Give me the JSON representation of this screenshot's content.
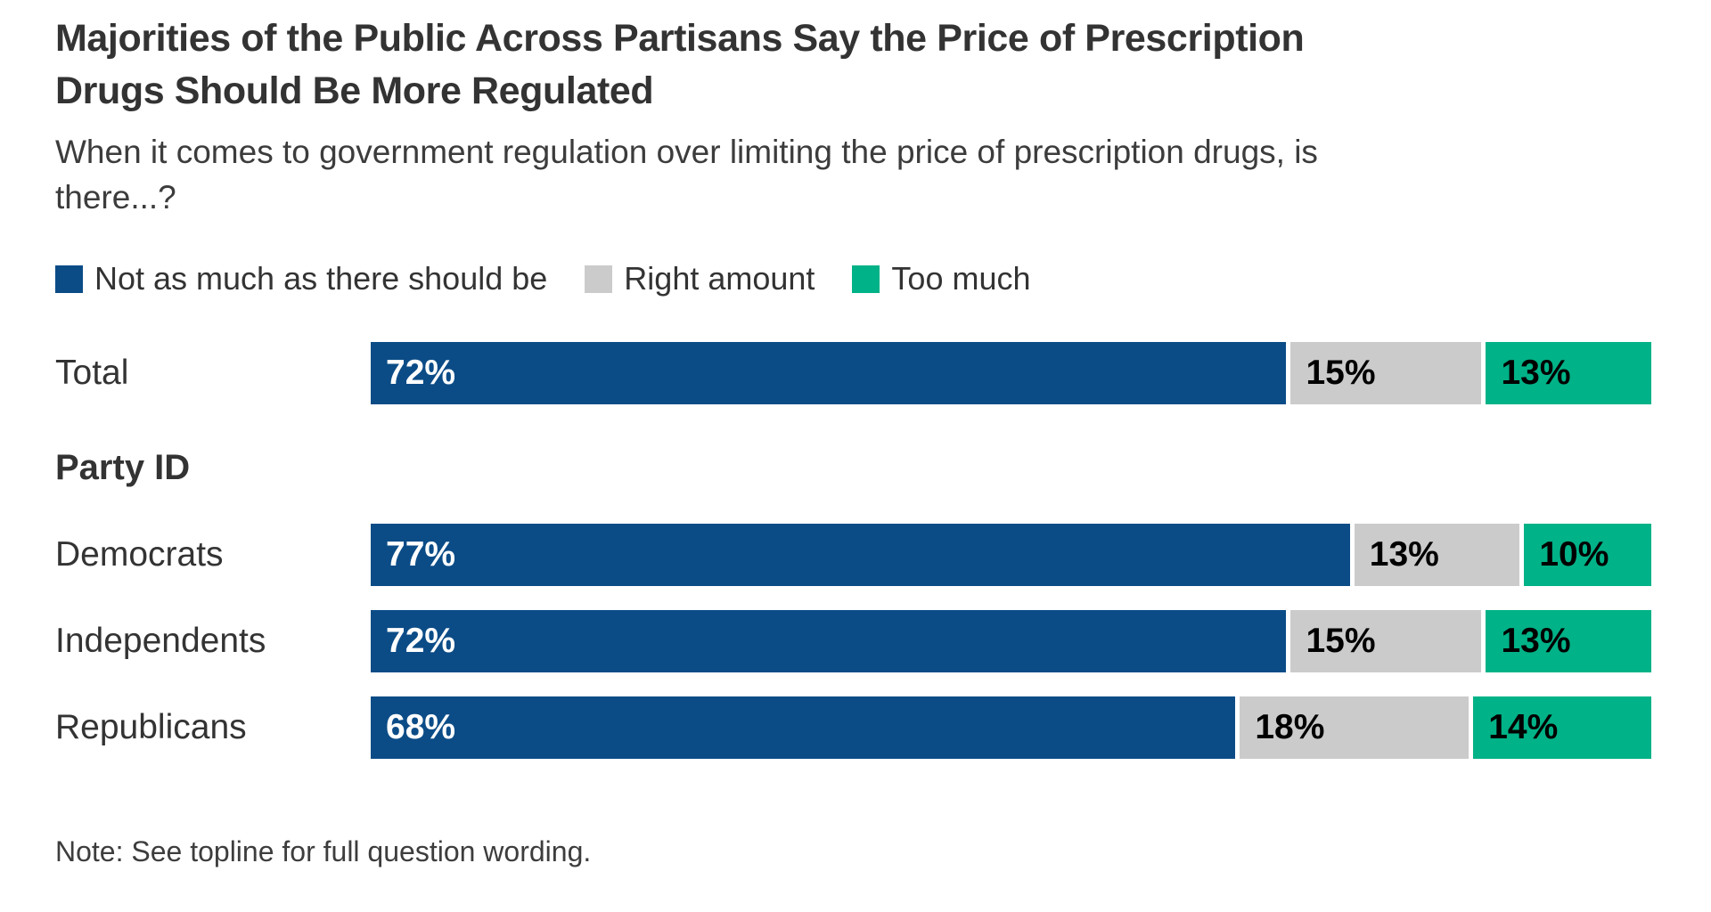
{
  "title": "Majorities of the Public Across Partisans Say the Price of Prescription Drugs Should Be More Regulated",
  "subtitle": "When it comes to government regulation over limiting the price of prescription drugs, is there...?",
  "section_header": "Party ID",
  "note": "Note: See topline for full question wording.",
  "colors": {
    "not_as_much": "#0b4c87",
    "right_amount": "#cbcbcb",
    "too_much": "#00b287",
    "label_on_dark": "#ffffff",
    "label_on_light": "#000000",
    "text": "#333333"
  },
  "chart_data": {
    "type": "bar",
    "orientation": "horizontal-stacked",
    "title": "Majorities of the Public Across Partisans Say the Price of Prescription Drugs Should Be More Regulated",
    "question": "When it comes to government regulation over limiting the price of prescription drugs, is there...?",
    "categories": [
      "Total",
      "Democrats",
      "Independents",
      "Republicans"
    ],
    "group_header_after_first": "Party ID",
    "value_format": "percent",
    "xlim": [
      0,
      100
    ],
    "grid": false,
    "legend_position": "top",
    "series": [
      {
        "name": "Not as much as there should be",
        "key": "not_as_much",
        "color": "#0b4c87",
        "values": [
          72,
          77,
          72,
          68
        ]
      },
      {
        "name": "Right amount",
        "key": "right_amount",
        "color": "#cbcbcb",
        "values": [
          15,
          13,
          15,
          18
        ]
      },
      {
        "name": "Too much",
        "key": "too_much",
        "color": "#00b287",
        "values": [
          13,
          10,
          13,
          14
        ]
      }
    ]
  }
}
